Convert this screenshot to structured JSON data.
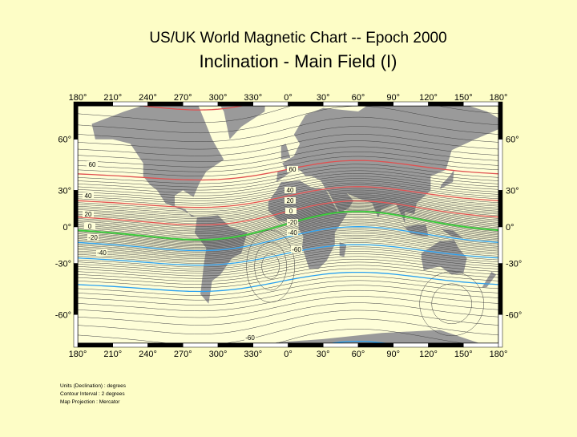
{
  "title": "US/UK World Magnetic Chart  --  Epoch 2000",
  "subtitle": "Inclination - Main Field (I)",
  "map": {
    "top_lon_labels": [
      "180°",
      "210°",
      "240°",
      "270°",
      "300°",
      "330°",
      "0°",
      "30°",
      "60°",
      "90°",
      "120°",
      "150°",
      "180°"
    ],
    "bottom_lon_labels": [
      "180°",
      "210°",
      "240°",
      "270°",
      "300°",
      "330°",
      "0°",
      "30°",
      "60°",
      "90°",
      "120°",
      "150°",
      "180°"
    ],
    "left_lat_labels": [
      "60°",
      "30°",
      "0°",
      "-30°",
      "-60°"
    ],
    "right_lat_labels": [
      "60°",
      "30°",
      "0°",
      "-30°",
      "-60°"
    ],
    "contour_labels": [
      "60",
      "40",
      "20",
      "0",
      "-20",
      "-40",
      "60",
      "40",
      "20",
      "0",
      "-20",
      "-40",
      "-60",
      "-60"
    ]
  },
  "notes": [
    "Units (Declination) : degrees",
    "Contour Interval : 2 degrees",
    "Map Projection : Mercator"
  ]
}
